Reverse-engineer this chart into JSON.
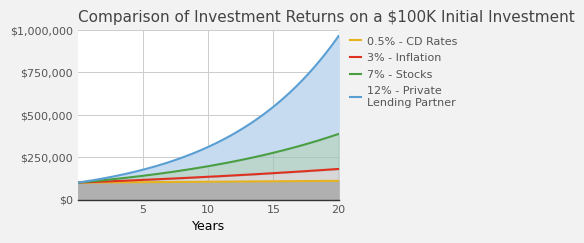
{
  "title": "Comparison of Investment Returns on a $100K Initial Investment",
  "xlabel": "Years",
  "initial": 100000,
  "rates": [
    0.005,
    0.03,
    0.07,
    0.12
  ],
  "labels": [
    "0.5% - CD Rates",
    "3% - Inflation",
    "7% - Stocks",
    "12% - Private\nLending Partner"
  ],
  "line_colors": [
    "#e6b320",
    "#e03020",
    "#4a9e40",
    "#5a9fd4"
  ],
  "fill_colors_below": [
    "#b0b0b0",
    "#b0b0b0",
    "#b0c8b8",
    "#c6dbef"
  ],
  "years_max": 20,
  "ylim": [
    0,
    1000000
  ],
  "yticks": [
    0,
    250000,
    500000,
    750000,
    1000000
  ],
  "xticks": [
    5,
    10,
    15,
    20
  ],
  "background_color": "#f2f2f2",
  "plot_bg_color": "#ffffff",
  "grid_color": "#cccccc",
  "title_fontsize": 11,
  "label_fontsize": 9,
  "tick_fontsize": 8,
  "legend_fontsize": 8
}
